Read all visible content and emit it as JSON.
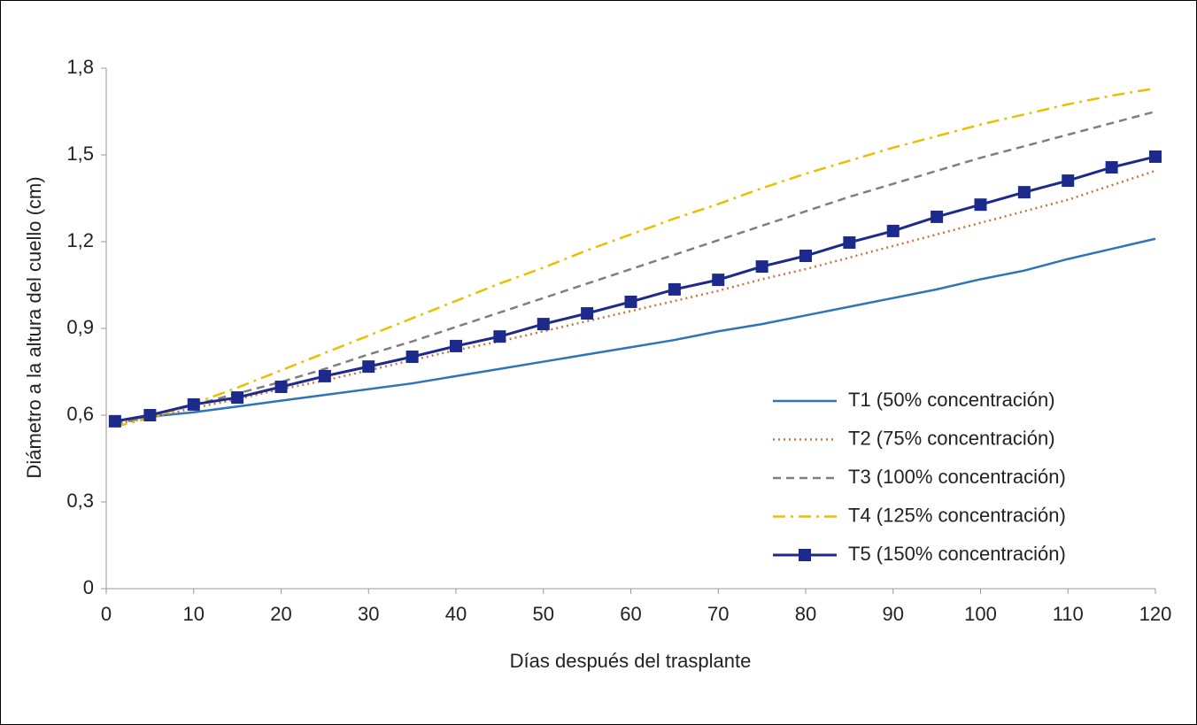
{
  "chart_data": {
    "type": "line",
    "x_label": "Días después del trasplante",
    "y_label": "Diámetro a la altura del cuello (cm)",
    "x": [
      1,
      5,
      10,
      15,
      20,
      25,
      30,
      35,
      40,
      45,
      50,
      55,
      60,
      65,
      70,
      75,
      80,
      85,
      90,
      95,
      100,
      105,
      110,
      115,
      120
    ],
    "xlim": [
      0,
      120
    ],
    "xticks": [
      0,
      10,
      20,
      30,
      40,
      50,
      60,
      70,
      80,
      90,
      100,
      110,
      120
    ],
    "ylim": [
      0,
      1.8
    ],
    "yticks": [
      0,
      {
        "value": 0.3,
        "label": "0,3"
      },
      {
        "value": 0.6,
        "label": "0,6"
      },
      {
        "value": 0.9,
        "label": "0,9"
      },
      {
        "value": 1.2,
        "label": "1,2"
      },
      {
        "value": 1.5,
        "label": "1,5"
      },
      {
        "value": 1.8,
        "label": "1,8"
      }
    ],
    "legend": "lower right",
    "series": [
      {
        "name": "T1 (50% concentración)",
        "color": "#2e75b6",
        "dash": "solid",
        "values": [
          0.58,
          0.595,
          0.61,
          0.63,
          0.65,
          0.67,
          0.69,
          0.71,
          0.735,
          0.76,
          0.785,
          0.81,
          0.835,
          0.86,
          0.89,
          0.915,
          0.945,
          0.975,
          1.005,
          1.035,
          1.07,
          1.1,
          1.14,
          1.175,
          1.21
        ]
      },
      {
        "name": "T2 (75% concentración)",
        "color": "#c8743c",
        "dash": "dotted",
        "values": [
          0.57,
          0.59,
          0.625,
          0.655,
          0.69,
          0.72,
          0.755,
          0.79,
          0.825,
          0.855,
          0.89,
          0.925,
          0.96,
          0.995,
          1.03,
          1.07,
          1.105,
          1.145,
          1.185,
          1.225,
          1.265,
          1.305,
          1.345,
          1.395,
          1.445
        ]
      },
      {
        "name": "T3 (100% concentración)",
        "color": "#7f7f7f",
        "dash": "dashed",
        "values": [
          0.57,
          0.595,
          0.635,
          0.675,
          0.715,
          0.76,
          0.81,
          0.855,
          0.905,
          0.955,
          1.005,
          1.055,
          1.105,
          1.155,
          1.205,
          1.255,
          1.305,
          1.355,
          1.4,
          1.445,
          1.49,
          1.53,
          1.57,
          1.61,
          1.65
        ]
      },
      {
        "name": "T4 (125% concentración)",
        "color": "#e8c000",
        "dash": "dashdot",
        "values": [
          0.56,
          0.59,
          0.64,
          0.695,
          0.755,
          0.815,
          0.875,
          0.935,
          0.995,
          1.055,
          1.11,
          1.17,
          1.225,
          1.28,
          1.33,
          1.385,
          1.435,
          1.48,
          1.525,
          1.565,
          1.605,
          1.64,
          1.675,
          1.705,
          1.73
        ]
      },
      {
        "name": "T5 (150% concentración)",
        "color": "#1c2a8c",
        "dash": "solid",
        "marker": "square",
        "values": [
          0.579,
          0.6,
          0.637,
          0.661,
          0.698,
          0.735,
          0.768,
          0.802,
          0.839,
          0.872,
          0.915,
          0.952,
          0.992,
          1.035,
          1.068,
          1.114,
          1.151,
          1.197,
          1.237,
          1.286,
          1.328,
          1.371,
          1.411,
          1.457,
          1.494
        ]
      }
    ]
  }
}
